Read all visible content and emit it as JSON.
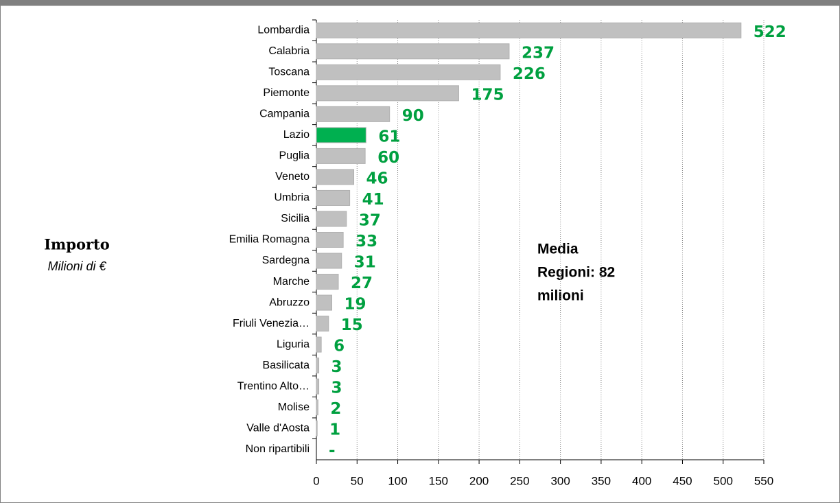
{
  "chart_data": {
    "type": "bar",
    "orientation": "horizontal",
    "y_label": "Importo",
    "y_sublabel": "Milioni di €",
    "annotation": [
      "Media",
      "Regioni: 82",
      "milioni"
    ],
    "categories": [
      "Lombardia",
      "Calabria",
      "Toscana",
      "Piemonte",
      "Campania",
      "Lazio",
      "Puglia",
      "Veneto",
      "Umbria",
      "Sicilia",
      "Emilia Romagna",
      "Sardegna",
      "Marche",
      "Abruzzo",
      "Friuli Venezia…",
      "Liguria",
      "Basilicata",
      "Trentino Alto…",
      "Molise",
      "Valle d'Aosta",
      "Non ripartibili"
    ],
    "values": [
      522,
      237,
      226,
      175,
      90,
      61,
      60,
      46,
      41,
      37,
      33,
      31,
      27,
      19,
      15,
      6,
      3,
      3,
      2,
      1,
      0
    ],
    "value_labels": [
      "522",
      "237",
      "226",
      "175",
      "90",
      "61",
      "60",
      "46",
      "41",
      "37",
      "33",
      "31",
      "27",
      "19",
      "15",
      "6",
      "3",
      "3",
      "2",
      "1",
      "-"
    ],
    "colors": [
      "#c0c0c0",
      "#c0c0c0",
      "#c0c0c0",
      "#c0c0c0",
      "#c0c0c0",
      "#00b050",
      "#c0c0c0",
      "#c0c0c0",
      "#c0c0c0",
      "#c0c0c0",
      "#c0c0c0",
      "#c0c0c0",
      "#c0c0c0",
      "#c0c0c0",
      "#c0c0c0",
      "#c0c0c0",
      "#c0c0c0",
      "#c0c0c0",
      "#c0c0c0",
      "#c0c0c0",
      "#c0c0c0"
    ],
    "label_color": "#00a040",
    "xlim": [
      0,
      550
    ],
    "xticks": [
      0,
      50,
      100,
      150,
      200,
      250,
      300,
      350,
      400,
      450,
      500,
      550
    ],
    "grid": true
  }
}
